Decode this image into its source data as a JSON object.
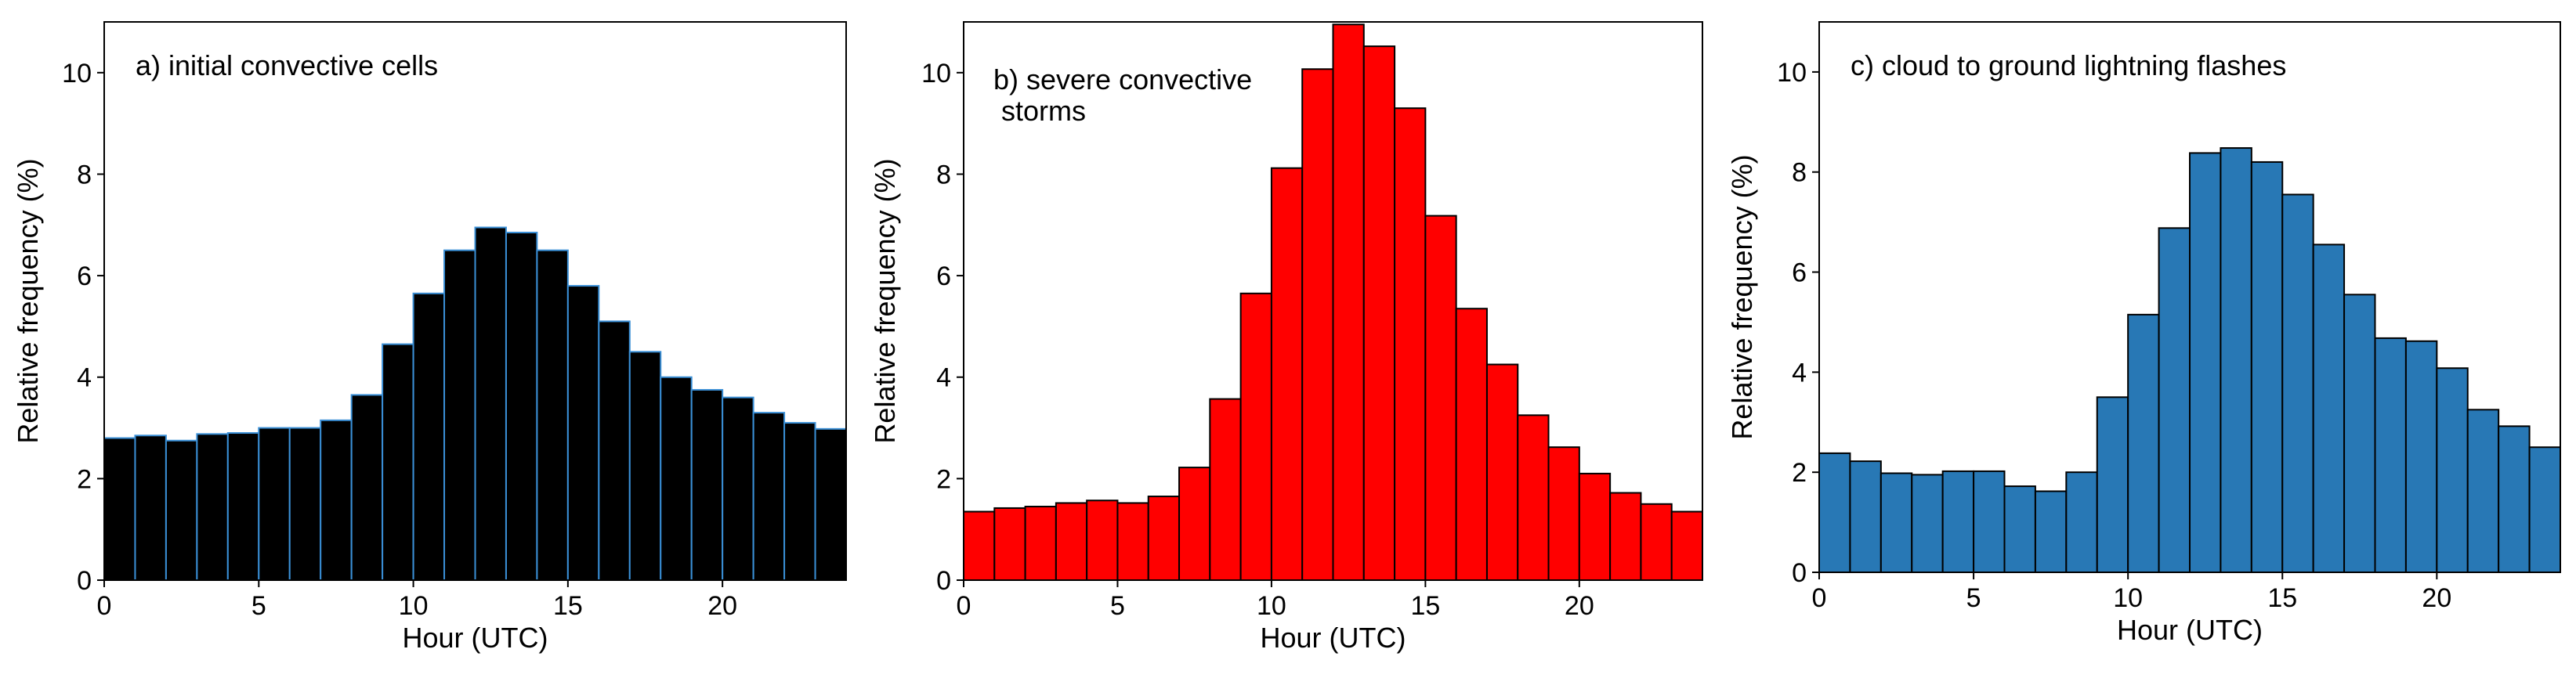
{
  "chart_data": [
    {
      "type": "bar",
      "panel_label": "a) initial convective cells",
      "xlabel": "Hour (UTC)",
      "ylabel": "Relative frequency (%)",
      "xlim": [
        0,
        24
      ],
      "ylim": [
        0,
        11
      ],
      "xticks": [
        0,
        5,
        10,
        15,
        20
      ],
      "yticks": [
        0,
        2,
        4,
        6,
        8,
        10
      ],
      "bar_color": "#000000",
      "edge_color": "#3a8fd6",
      "categories": [
        0,
        1,
        2,
        3,
        4,
        5,
        6,
        7,
        8,
        9,
        10,
        11,
        12,
        13,
        14,
        15,
        16,
        17,
        18,
        19,
        20,
        21,
        22,
        23
      ],
      "values": [
        2.8,
        2.85,
        2.75,
        2.88,
        2.9,
        3.0,
        3.0,
        3.15,
        3.65,
        4.65,
        5.65,
        6.5,
        6.95,
        6.85,
        6.5,
        5.8,
        5.1,
        4.5,
        4.0,
        3.75,
        3.6,
        3.3,
        3.1,
        2.98
      ]
    },
    {
      "type": "bar",
      "panel_label": "b) severe convective\n storms",
      "xlabel": "Hour (UTC)",
      "ylabel": "Relative frequency (%)",
      "xlim": [
        0,
        24
      ],
      "ylim": [
        0,
        11
      ],
      "xticks": [
        0,
        5,
        10,
        15,
        20
      ],
      "yticks": [
        0,
        2,
        4,
        6,
        8,
        10
      ],
      "bar_color": "#ff0000",
      "edge_color": "#000000",
      "categories": [
        0,
        1,
        2,
        3,
        4,
        5,
        6,
        7,
        8,
        9,
        10,
        11,
        12,
        13,
        14,
        15,
        16,
        17,
        18,
        19,
        20,
        21,
        22,
        23
      ],
      "values": [
        1.35,
        1.42,
        1.45,
        1.52,
        1.57,
        1.52,
        1.65,
        2.22,
        3.57,
        5.65,
        8.12,
        10.07,
        10.95,
        10.52,
        9.3,
        7.18,
        5.35,
        4.25,
        3.25,
        2.62,
        2.1,
        1.72,
        1.5,
        1.35
      ]
    },
    {
      "type": "bar",
      "panel_label": "c) cloud to ground lightning flashes",
      "xlabel": "Hour (UTC)",
      "ylabel": "Relative frequency (%)",
      "xlim": [
        0,
        24
      ],
      "ylim": [
        0,
        11
      ],
      "xticks": [
        0,
        5,
        10,
        15,
        20
      ],
      "yticks": [
        0,
        2,
        4,
        6,
        8,
        10
      ],
      "bar_color": "#2878b5",
      "edge_color": "#000000",
      "categories": [
        0,
        1,
        2,
        3,
        4,
        5,
        6,
        7,
        8,
        9,
        10,
        11,
        12,
        13,
        14,
        15,
        16,
        17,
        18,
        19,
        20,
        21,
        22,
        23
      ],
      "values": [
        2.38,
        2.22,
        1.98,
        1.95,
        2.02,
        2.02,
        1.72,
        1.62,
        2.0,
        3.5,
        5.15,
        6.88,
        8.38,
        8.48,
        8.2,
        7.55,
        6.55,
        5.55,
        4.68,
        4.62,
        4.08,
        3.25,
        2.92,
        2.5
      ]
    }
  ]
}
